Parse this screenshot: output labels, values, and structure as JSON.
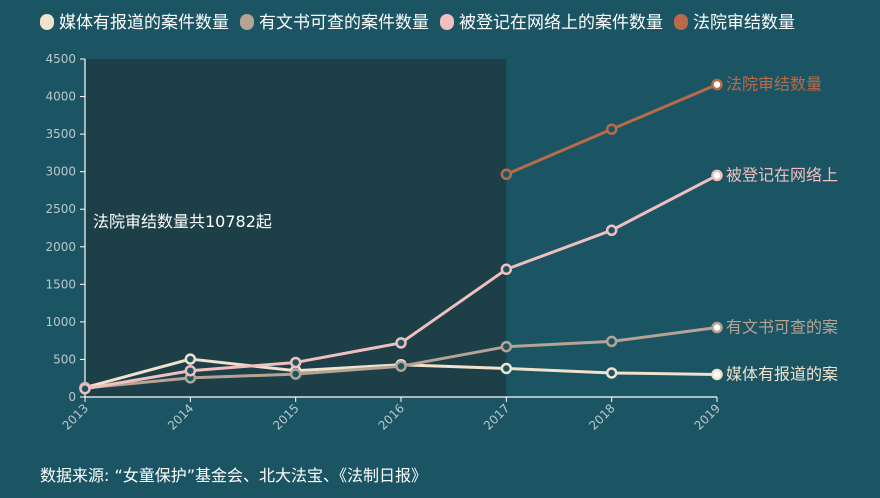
{
  "chart_data": {
    "type": "line",
    "x": [
      "2013",
      "2014",
      "2015",
      "2016",
      "2017",
      "2018",
      "2019"
    ],
    "y_ticks": [
      0,
      500,
      1000,
      1500,
      2000,
      2500,
      3000,
      3500,
      4000,
      4500
    ],
    "ylim": [
      0,
      4500
    ],
    "grid": false,
    "legend_position": "top-left",
    "series": [
      {
        "name": "媒体有报道的案件数量",
        "color": "#f0e2cc",
        "values": [
          125,
          505,
          350,
          430,
          380,
          320,
          300
        ]
      },
      {
        "name": "有文书可查的案件数量",
        "color": "#b5a394",
        "values": [
          120,
          255,
          305,
          410,
          670,
          740,
          925
        ]
      },
      {
        "name": "被登记在网络上的案件数量",
        "color": "#f2bfbf",
        "values": [
          110,
          350,
          460,
          720,
          1700,
          2220,
          2950
        ]
      },
      {
        "name": "法院审结数量",
        "color": "#b86a4a",
        "values": [
          null,
          null,
          null,
          null,
          2965,
          3565,
          4160
        ]
      }
    ],
    "end_labels": [
      "媒体有报道的案",
      "有文书可查的案",
      "被登记在网络上",
      "法院审结数量"
    ],
    "annotation": {
      "text": "法院审结数量共10782起",
      "x_range": [
        "2013",
        "2017"
      ]
    },
    "source": "数据来源: “女童保护”基金会、北大法宝、《法制日报》"
  }
}
